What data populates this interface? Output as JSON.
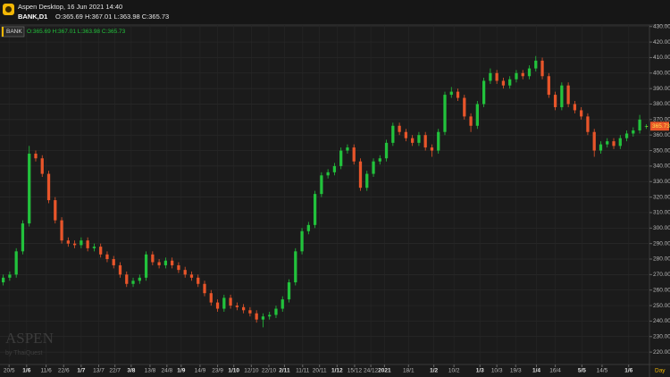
{
  "header": {
    "app_title": "Aspen Desktop, 16 Jun 2021 14:40",
    "symbol": "BANK,D1",
    "ohlc_text": "O:365.69 H:367.01 L:363.98 C:365.73"
  },
  "chart_data": {
    "type": "candlestick",
    "legend_symbol": "BANK",
    "last_price_label": "365.73",
    "watermark": "ASPEN",
    "watermark_sub": "by ThaiQuest",
    "x_axis_unit": "Day",
    "up_color": "#22c23c",
    "down_color": "#e8552a",
    "grid": true,
    "open": [
      265,
      268,
      270,
      285,
      303,
      348,
      345,
      335,
      318,
      305,
      292,
      290,
      289,
      292,
      287,
      288,
      283,
      280,
      276,
      270,
      264,
      266,
      268,
      283,
      278,
      276,
      279,
      276,
      273,
      270,
      268,
      264,
      258,
      252,
      248,
      255,
      250,
      249,
      247,
      245,
      241,
      243,
      244,
      248,
      254,
      265,
      285,
      298,
      302,
      322,
      334,
      336,
      340,
      350,
      352,
      343,
      326,
      335,
      343,
      345,
      355,
      366,
      362,
      358,
      355,
      360,
      352,
      350,
      362,
      386,
      388,
      384,
      372,
      366,
      380,
      395,
      400,
      395,
      392,
      396,
      400,
      398,
      403,
      408,
      398,
      386,
      378,
      392,
      380,
      376,
      372,
      362,
      350,
      354,
      356,
      353,
      358,
      361,
      363,
      365.69
    ],
    "high": [
      270,
      272,
      287,
      305,
      353,
      350,
      347,
      337,
      320,
      307,
      294,
      292,
      294,
      294,
      290,
      290,
      285,
      282,
      278,
      272,
      268,
      270,
      285,
      285,
      280,
      281,
      281,
      278,
      275,
      272,
      270,
      266,
      260,
      254,
      257,
      257,
      252,
      251,
      249,
      247,
      245,
      246,
      250,
      256,
      267,
      287,
      300,
      304,
      324,
      336,
      338,
      342,
      352,
      354,
      354,
      345,
      337,
      345,
      347,
      357,
      368,
      368,
      364,
      360,
      362,
      362,
      354,
      364,
      388,
      391,
      390,
      386,
      374,
      382,
      397,
      403,
      402,
      397,
      398,
      402,
      402,
      405,
      411,
      410,
      400,
      388,
      394,
      394,
      382,
      378,
      374,
      364,
      356,
      358,
      358,
      360,
      363,
      365,
      373,
      367.01
    ],
    "low": [
      263,
      266,
      268,
      283,
      301,
      343,
      333,
      316,
      303,
      290,
      288,
      287,
      287,
      285,
      285,
      281,
      278,
      274,
      268,
      262,
      262,
      264,
      266,
      276,
      274,
      274,
      274,
      271,
      268,
      266,
      262,
      256,
      250,
      246,
      246,
      248,
      247,
      245,
      243,
      239,
      236,
      241,
      242,
      246,
      252,
      263,
      283,
      296,
      300,
      320,
      332,
      334,
      338,
      348,
      341,
      324,
      324,
      333,
      341,
      343,
      353,
      360,
      356,
      353,
      353,
      350,
      346,
      348,
      360,
      384,
      382,
      370,
      362,
      364,
      378,
      393,
      393,
      390,
      390,
      394,
      396,
      396,
      401,
      396,
      384,
      376,
      376,
      378,
      374,
      370,
      360,
      346,
      348,
      352,
      351,
      351,
      356,
      359,
      361,
      363.98
    ],
    "close": [
      268,
      270,
      285,
      303,
      348,
      345,
      335,
      318,
      305,
      292,
      290,
      289,
      292,
      287,
      288,
      283,
      280,
      276,
      270,
      264,
      266,
      268,
      283,
      278,
      276,
      279,
      276,
      273,
      270,
      268,
      264,
      258,
      252,
      248,
      255,
      250,
      249,
      247,
      245,
      241,
      243,
      244,
      248,
      254,
      265,
      285,
      298,
      302,
      322,
      334,
      336,
      340,
      350,
      352,
      343,
      326,
      335,
      343,
      345,
      355,
      366,
      362,
      358,
      355,
      360,
      352,
      350,
      362,
      386,
      388,
      384,
      372,
      366,
      380,
      395,
      400,
      395,
      392,
      396,
      400,
      398,
      403,
      408,
      398,
      386,
      378,
      392,
      380,
      376,
      372,
      362,
      350,
      354,
      356,
      353,
      358,
      361,
      363,
      370,
      365.73
    ],
    "xlim": [
      -0.5,
      99.5
    ],
    "xticks": [
      {
        "value": 0.9,
        "label": "20/5"
      },
      {
        "value": 3.6,
        "label": "1/6"
      },
      {
        "value": 6.6,
        "label": "11/6"
      },
      {
        "value": 9.3,
        "label": "22/6"
      },
      {
        "value": 12,
        "label": "1/7"
      },
      {
        "value": 14.7,
        "label": "13/7"
      },
      {
        "value": 17.2,
        "label": "22/7"
      },
      {
        "value": 19.7,
        "label": "3/8"
      },
      {
        "value": 22.6,
        "label": "13/8"
      },
      {
        "value": 25.2,
        "label": "24/8"
      },
      {
        "value": 27.4,
        "label": "1/9"
      },
      {
        "value": 30.3,
        "label": "14/9"
      },
      {
        "value": 33,
        "label": "23/9"
      },
      {
        "value": 35.5,
        "label": "1/10"
      },
      {
        "value": 38.2,
        "label": "12/10"
      },
      {
        "value": 40.9,
        "label": "22/10"
      },
      {
        "value": 43.3,
        "label": "2/11"
      },
      {
        "value": 46.1,
        "label": "11/11"
      },
      {
        "value": 48.7,
        "label": "20/11"
      },
      {
        "value": 51.4,
        "label": "1/12"
      },
      {
        "value": 54.1,
        "label": "15/12"
      },
      {
        "value": 56.6,
        "label": "24/12"
      },
      {
        "value": 58.7,
        "label": "2021"
      },
      {
        "value": 62.4,
        "label": "18/1"
      },
      {
        "value": 66.3,
        "label": "1/2"
      },
      {
        "value": 69.4,
        "label": "10/2"
      },
      {
        "value": 73.4,
        "label": "1/3"
      },
      {
        "value": 76,
        "label": "10/3"
      },
      {
        "value": 78.9,
        "label": "19/3"
      },
      {
        "value": 82.1,
        "label": "1/4"
      },
      {
        "value": 85,
        "label": "16/4"
      },
      {
        "value": 89.1,
        "label": "5/5"
      },
      {
        "value": 92.2,
        "label": "14/5"
      },
      {
        "value": 96.3,
        "label": "1/6"
      }
    ],
    "bold_xticks": [
      1,
      4,
      7,
      10,
      13,
      16,
      19,
      22,
      24,
      26,
      29,
      31,
      33
    ],
    "ylim": [
      212,
      431
    ],
    "yticks": [
      {
        "value": 220,
        "label": "220.00"
      },
      {
        "value": 230,
        "label": "230.00"
      },
      {
        "value": 240,
        "label": "240.00"
      },
      {
        "value": 250,
        "label": "250.00"
      },
      {
        "value": 260,
        "label": "260.00"
      },
      {
        "value": 270,
        "label": "270.00"
      },
      {
        "value": 280,
        "label": "280.00"
      },
      {
        "value": 290,
        "label": "290.00"
      },
      {
        "value": 300,
        "label": "300.00"
      },
      {
        "value": 310,
        "label": "310.00"
      },
      {
        "value": 320,
        "label": "320.00"
      },
      {
        "value": 330,
        "label": "330.00"
      },
      {
        "value": 340,
        "label": "340.00"
      },
      {
        "value": 350,
        "label": "350.00"
      },
      {
        "value": 360,
        "label": "360.00"
      },
      {
        "value": 370,
        "label": "370.00"
      },
      {
        "value": 380,
        "label": "380.00"
      },
      {
        "value": 390,
        "label": "390.00"
      },
      {
        "value": 400,
        "label": "400.00"
      },
      {
        "value": 410,
        "label": "410.00"
      },
      {
        "value": 420,
        "label": "420.00"
      },
      {
        "value": 430,
        "label": "430.00"
      }
    ]
  }
}
